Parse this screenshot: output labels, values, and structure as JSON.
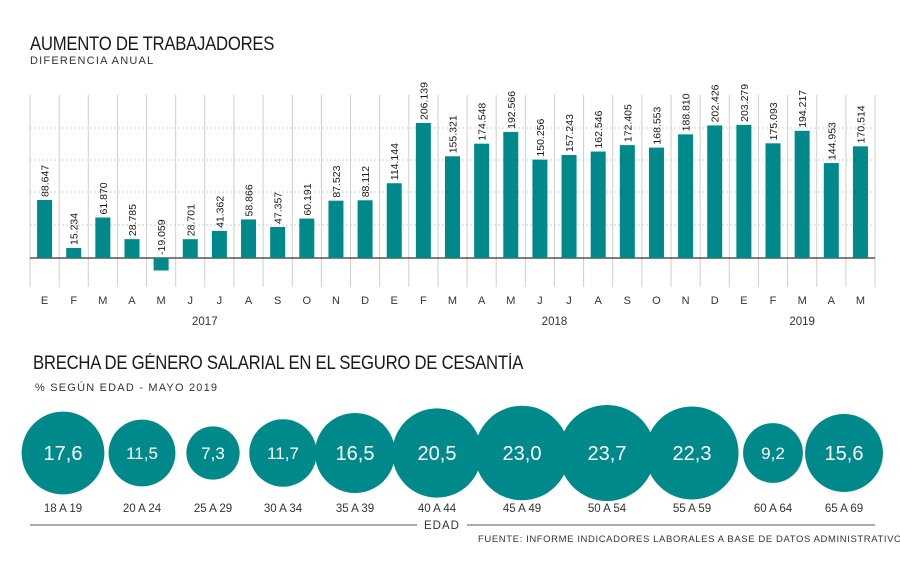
{
  "header": {
    "title": "AUMENTO DE TRABAJADORES",
    "subtitle": "DIFERENCIA ANUAL"
  },
  "section2": {
    "title": "BRECHA DE GÉNERO SALARIAL EN EL SEGURO DE CESANTÍA",
    "subtitle": "%  SEGÚN EDAD - MAYO 2019"
  },
  "footer": {
    "source": "FUENTE: INFORME INDICADORES LABORALES A BASE DE DATOS ADMINISTRATIVOS"
  },
  "colors": {
    "bar": "#00898a",
    "grid": "#cfcfcf",
    "baseline": "#333333"
  },
  "chart_data": [
    {
      "type": "bar",
      "title": "AUMENTO DE TRABAJADORES",
      "subtitle": "DIFERENCIA ANUAL",
      "categories": [
        "E",
        "F",
        "M",
        "A",
        "M",
        "J",
        "J",
        "A",
        "S",
        "O",
        "N",
        "D",
        "E",
        "F",
        "M",
        "A",
        "M",
        "J",
        "J",
        "A",
        "S",
        "O",
        "N",
        "D",
        "E",
        "F",
        "M",
        "A",
        "M"
      ],
      "values": [
        88647,
        15234,
        61870,
        28785,
        -19059,
        28701,
        41362,
        58866,
        47357,
        60191,
        87523,
        88112,
        114144,
        206139,
        155321,
        174548,
        192566,
        150256,
        157243,
        162546,
        172405,
        168553,
        188810,
        202426,
        203279,
        175093,
        194217,
        144953,
        170514
      ],
      "value_labels": [
        "88.647",
        "15.234",
        "61.870",
        "28.785",
        "-19.059",
        "28.701",
        "41.362",
        "58.866",
        "47.357",
        "60.191",
        "87.523",
        "88.112",
        "114.144",
        "206.139",
        "155.321",
        "174.548",
        "192.566",
        "150.256",
        "157.243",
        "162.546",
        "172.405",
        "168.553",
        "188.810",
        "202.426",
        "203.279",
        "175.093",
        "194.217",
        "144.953",
        "170.514"
      ],
      "year_groups": [
        {
          "label": "2017",
          "start": 0,
          "end": 11
        },
        {
          "label": "2018",
          "start": 12,
          "end": 23
        },
        {
          "label": "2019",
          "start": 24,
          "end": 28
        }
      ],
      "grid": true
    },
    {
      "type": "bubble",
      "title": "BRECHA DE GÉNERO SALARIAL EN EL SEGURO DE CESANTÍA",
      "subtitle": "%  SEGÚN EDAD - MAYO 2019",
      "xlabel": "EDAD",
      "categories": [
        "18 A 19",
        "20 A 24",
        "25 A 29",
        "30 A 34",
        "35 A 39",
        "40 A 44",
        "45 A 49",
        "50 A 54",
        "55 A 59",
        "60 A 64",
        "65 A 69"
      ],
      "values": [
        17.6,
        11.5,
        7.3,
        11.7,
        16.5,
        20.5,
        23.0,
        23.7,
        22.3,
        9.2,
        15.6
      ],
      "value_labels": [
        "17,6",
        "11,5",
        "7,3",
        "11,7",
        "16,5",
        "20,5",
        "23,0",
        "23,7",
        "22,3",
        "9,2",
        "15,6"
      ]
    }
  ]
}
